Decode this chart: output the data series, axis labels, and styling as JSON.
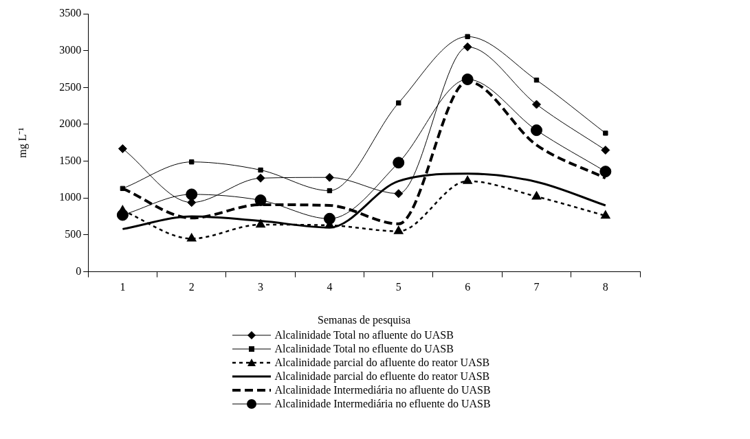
{
  "chart_data": {
    "type": "line",
    "xlabel": "Semanas de pesquisa",
    "ylabel": "mg L⁻¹",
    "categories": [
      "1",
      "2",
      "3",
      "4",
      "5",
      "6",
      "7",
      "8"
    ],
    "ylim": [
      0,
      3500
    ],
    "yticks": [
      0,
      500,
      1000,
      1500,
      2000,
      2500,
      3000,
      3500
    ],
    "grid": false,
    "legend": "bottom",
    "series": [
      {
        "name": "Alcalinidade Total no afluente do UASB",
        "color": "#000000",
        "marker": "diamond",
        "line_style": "solid",
        "values": [
          1670,
          940,
          1270,
          1280,
          1060,
          3050,
          2270,
          1650
        ]
      },
      {
        "name": "Alcalinidade Total no efluente do UASB",
        "color": "#000000",
        "marker": "square",
        "line_style": "solid",
        "values": [
          1130,
          1490,
          1380,
          1100,
          2290,
          3190,
          2600,
          1880
        ]
      },
      {
        "name": "Alcalinidade parcial do afluente do reator UASB",
        "color": "#000000",
        "marker": "triangle",
        "line_style": "dotted",
        "values": [
          830,
          450,
          640,
          630,
          550,
          1230,
          1020,
          760
        ]
      },
      {
        "name": "Alcalinidade parcial do efluente do reator UASB",
        "color": "#000000",
        "marker": "none",
        "line_style": "solid",
        "values": [
          580,
          750,
          690,
          600,
          1230,
          1330,
          1220,
          900
        ]
      },
      {
        "name": "Alcalinidade Intermediária no afluente do UASB",
        "color": "#000000",
        "marker": "none",
        "line_style": "dashed",
        "values": [
          1130,
          730,
          910,
          900,
          650,
          2580,
          1720,
          1270
        ]
      },
      {
        "name": "Alcalinidade Intermediária no efluente do UASB",
        "color": "#000000",
        "marker": "circle",
        "line_style": "solid",
        "values": [
          770,
          1050,
          970,
          720,
          1480,
          2610,
          1920,
          1360
        ]
      }
    ]
  }
}
